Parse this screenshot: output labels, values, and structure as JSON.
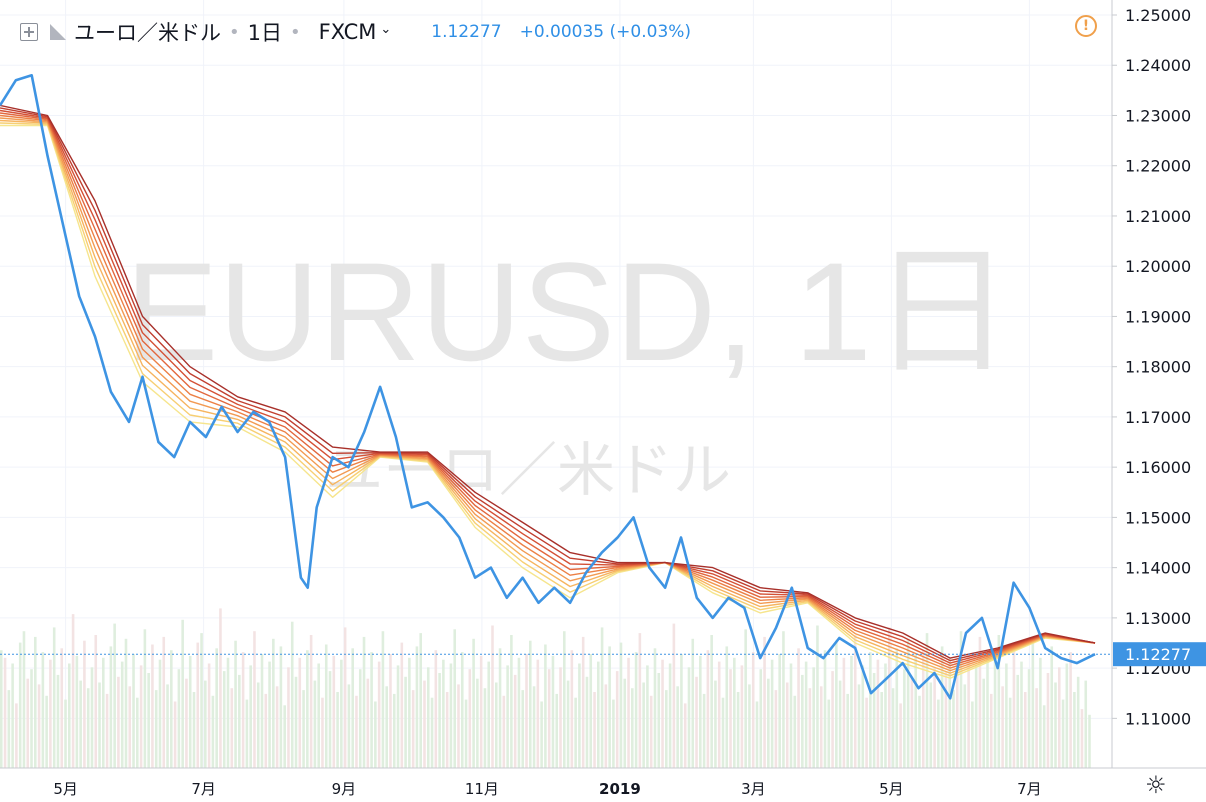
{
  "header": {
    "symbol_name": "ユーロ／米ドル",
    "interval": "1日",
    "source": "FXCM",
    "last_price": "1.12277",
    "change": "+0.00035 (+0.03%)"
  },
  "watermark": {
    "line1": "EURUSD, 1日",
    "line2": "ユーロ／米ドル"
  },
  "icons": {
    "alert": "alert-icon",
    "settings": "gear-icon",
    "add": "plus-square-icon",
    "flag": "flag-icon",
    "dropdown": "chevron-down-icon"
  },
  "colors": {
    "price_line": "#3e94e3",
    "ribbon": [
      "#f6e58d",
      "#f7cf73",
      "#f6b45f",
      "#f29a52",
      "#ec8046",
      "#e2673d",
      "#d45136",
      "#c13f2f",
      "#a8302a"
    ],
    "volume_up": "#dfeede",
    "volume_down": "#f3e3e3",
    "price_label_bg": "#3e94e3"
  },
  "chart_data": {
    "type": "line",
    "title": "EURUSD, 1日",
    "price_axis": {
      "ticks": [
        "1.25000",
        "1.24000",
        "1.23000",
        "1.22000",
        "1.21000",
        "1.20000",
        "1.19000",
        "1.18000",
        "1.17000",
        "1.16000",
        "1.15000",
        "1.14000",
        "1.13000",
        "1.12000",
        "1.11000"
      ],
      "range": [
        1.102,
        1.252
      ],
      "current_price_label": "1.12277",
      "current_price": 1.12277
    },
    "time_axis": {
      "ticks": [
        "5月",
        "7月",
        "9月",
        "11月",
        "2019",
        "3月",
        "5月",
        "7月"
      ],
      "tick_dates": [
        "2018-05-01",
        "2018-07-01",
        "2018-09-01",
        "2018-11-01",
        "2019-01-01",
        "2019-03-01",
        "2019-05-01",
        "2019-07-01"
      ],
      "range": [
        "2018-04-02",
        "2019-07-30"
      ]
    },
    "series": [
      {
        "style": "line",
        "x": [
          "2018-04-02",
          "2018-04-09",
          "2018-04-16",
          "2018-04-23",
          "2018-05-01",
          "2018-05-07",
          "2018-05-14",
          "2018-05-21",
          "2018-05-29",
          "2018-06-04",
          "2018-06-11",
          "2018-06-18",
          "2018-06-25",
          "2018-07-02",
          "2018-07-09",
          "2018-07-16",
          "2018-07-23",
          "2018-07-30",
          "2018-08-06",
          "2018-08-13",
          "2018-08-16",
          "2018-08-20",
          "2018-08-27",
          "2018-09-03",
          "2018-09-10",
          "2018-09-17",
          "2018-09-24",
          "2018-10-01",
          "2018-10-08",
          "2018-10-15",
          "2018-10-22",
          "2018-10-29",
          "2018-11-05",
          "2018-11-12",
          "2018-11-19",
          "2018-11-26",
          "2018-12-03",
          "2018-12-10",
          "2018-12-17",
          "2018-12-24",
          "2018-12-31",
          "2019-01-07",
          "2019-01-14",
          "2019-01-21",
          "2019-01-28",
          "2019-02-04",
          "2019-02-11",
          "2019-02-18",
          "2019-02-25",
          "2019-03-04",
          "2019-03-11",
          "2019-03-18",
          "2019-03-25",
          "2019-04-01",
          "2019-04-08",
          "2019-04-15",
          "2019-04-22",
          "2019-04-29",
          "2019-05-06",
          "2019-05-13",
          "2019-05-20",
          "2019-05-27",
          "2019-06-03",
          "2019-06-10",
          "2019-06-17",
          "2019-06-24",
          "2019-07-01",
          "2019-07-08",
          "2019-07-15",
          "2019-07-22",
          "2019-07-30"
        ],
        "y": [
          1.232,
          1.237,
          1.238,
          1.222,
          1.206,
          1.194,
          1.186,
          1.175,
          1.169,
          1.178,
          1.165,
          1.162,
          1.169,
          1.166,
          1.172,
          1.167,
          1.171,
          1.169,
          1.162,
          1.138,
          1.136,
          1.152,
          1.162,
          1.16,
          1.167,
          1.176,
          1.166,
          1.152,
          1.153,
          1.15,
          1.146,
          1.138,
          1.14,
          1.134,
          1.138,
          1.133,
          1.136,
          1.133,
          1.139,
          1.143,
          1.146,
          1.15,
          1.14,
          1.136,
          1.146,
          1.134,
          1.13,
          1.134,
          1.132,
          1.122,
          1.128,
          1.136,
          1.124,
          1.122,
          1.126,
          1.124,
          1.115,
          1.118,
          1.121,
          1.116,
          1.119,
          1.114,
          1.127,
          1.13,
          1.12,
          1.137,
          1.132,
          1.124,
          1.122,
          1.121,
          1.12277
        ]
      },
      {
        "style": "ribbon",
        "x": [
          "2018-04-02",
          "2018-04-23",
          "2018-05-14",
          "2018-06-04",
          "2018-06-25",
          "2018-07-16",
          "2018-08-06",
          "2018-08-27",
          "2018-09-17",
          "2018-10-08",
          "2018-10-29",
          "2018-11-19",
          "2018-12-10",
          "2018-12-31",
          "2019-01-21",
          "2019-02-11",
          "2019-03-04",
          "2019-03-25",
          "2019-04-15",
          "2019-05-06",
          "2019-05-27",
          "2019-06-17",
          "2019-07-08",
          "2019-07-30"
        ],
        "lower": [
          1.228,
          1.228,
          1.198,
          1.177,
          1.169,
          1.168,
          1.163,
          1.154,
          1.162,
          1.161,
          1.148,
          1.14,
          1.134,
          1.139,
          1.141,
          1.135,
          1.131,
          1.133,
          1.125,
          1.121,
          1.118,
          1.122,
          1.126,
          1.125
        ],
        "upper": [
          1.232,
          1.23,
          1.213,
          1.19,
          1.18,
          1.174,
          1.171,
          1.164,
          1.163,
          1.163,
          1.155,
          1.149,
          1.143,
          1.141,
          1.141,
          1.14,
          1.136,
          1.135,
          1.13,
          1.127,
          1.122,
          1.124,
          1.127,
          1.125
        ]
      }
    ],
    "volume": [
      0.62,
      0.58,
      0.41,
      0.55,
      0.34,
      0.66,
      0.72,
      0.47,
      0.52,
      0.69,
      0.44,
      0.61,
      0.38,
      0.57,
      0.74,
      0.49,
      0.63,
      0.36,
      0.55,
      0.81,
      0.59,
      0.46,
      0.67,
      0.42,
      0.53,
      0.7,
      0.45,
      0.58,
      0.39,
      0.64,
      0.76,
      0.48,
      0.56,
      0.68,
      0.43,
      0.6,
      0.37,
      0.54,
      0.73,
      0.5,
      0.65,
      0.41,
      0.57,
      0.69,
      0.44,
      0.62,
      0.35,
      0.52,
      0.78,
      0.47,
      0.59,
      0.4,
      0.66,
      0.71,
      0.46,
      0.55,
      0.38,
      0.63,
      0.84,
      0.51,
      0.58,
      0.42,
      0.67,
      0.49,
      0.61,
      0.36,
      0.54,
      0.72,
      0.45,
      0.6,
      0.39,
      0.56,
      0.68,
      0.43,
      0.64,
      0.33,
      0.53,
      0.77,
      0.48,
      0.58,
      0.41,
      0.62,
      0.7,
      0.46,
      0.55,
      0.37,
      0.65,
      0.51,
      0.59,
      0.4,
      0.57,
      0.74,
      0.44,
      0.63,
      0.38,
      0.52,
      0.69,
      0.47,
      0.61,
      0.35,
      0.56,
      0.72,
      0.43,
      0.6,
      0.39,
      0.54,
      0.66,
      0.48,
      0.58,
      0.41,
      0.64,
      0.71,
      0.46,
      0.53,
      0.37,
      0.62,
      0.5,
      0.57,
      0.4,
      0.55,
      0.73,
      0.44,
      0.61,
      0.36,
      0.52,
      0.68,
      0.47,
      0.59,
      0.42,
      0.56,
      0.75,
      0.45,
      0.63,
      0.38,
      0.54,
      0.7,
      0.49,
      0.58,
      0.41,
      0.6,
      0.67,
      0.43,
      0.57,
      0.35,
      0.65,
      0.52,
      0.59,
      0.39,
      0.53,
      0.72,
      0.46,
      0.62,
      0.37,
      0.55,
      0.69,
      0.48,
      0.6,
      0.4,
      0.56,
      0.74,
      0.44,
      0.64,
      0.36,
      0.51,
      0.66,
      0.47,
      0.58,
      0.42,
      0.61,
      0.71,
      0.45,
      0.54,
      0.38,
      0.63,
      0.5,
      0.57,
      0.41,
      0.55,
      0.76,
      0.43,
      0.6,
      0.34,
      0.53,
      0.68,
      0.48,
      0.59,
      0.39,
      0.62,
      0.7,
      0.46,
      0.56,
      0.37,
      0.64,
      0.52,
      0.58,
      0.4,
      0.54,
      0.73,
      0.44,
      0.61,
      0.35,
      0.52,
      0.69,
      0.47,
      0.57,
      0.41,
      0.6,
      0.72,
      0.45,
      0.55,
      0.38,
      0.63,
      0.49,
      0.56,
      0.42,
      0.53,
      0.75,
      0.43,
      0.62,
      0.36,
      0.51,
      0.67,
      0.46,
      0.58,
      0.39,
      0.59,
      0.7,
      0.44,
      0.54,
      0.37,
      0.61,
      0.5,
      0.57,
      0.4,
      0.55,
      0.74,
      0.42,
      0.63,
      0.34,
      0.52,
      0.68,
      0.48,
      0.6,
      0.38,
      0.62,
      0.71,
      0.45,
      0.53,
      0.36,
      0.64,
      0.51,
      0.58,
      0.41,
      0.56,
      0.72,
      0.44,
      0.6,
      0.35,
      0.54,
      0.69,
      0.47,
      0.59,
      0.39,
      0.57,
      0.7,
      0.43,
      0.55,
      0.37,
      0.63,
      0.49,
      0.56,
      0.4,
      0.52,
      0.66,
      0.42,
      0.58,
      0.33,
      0.5,
      0.64,
      0.45,
      0.53,
      0.36,
      0.55,
      0.61,
      0.4,
      0.48,
      0.31,
      0.46,
      0.28
    ]
  }
}
